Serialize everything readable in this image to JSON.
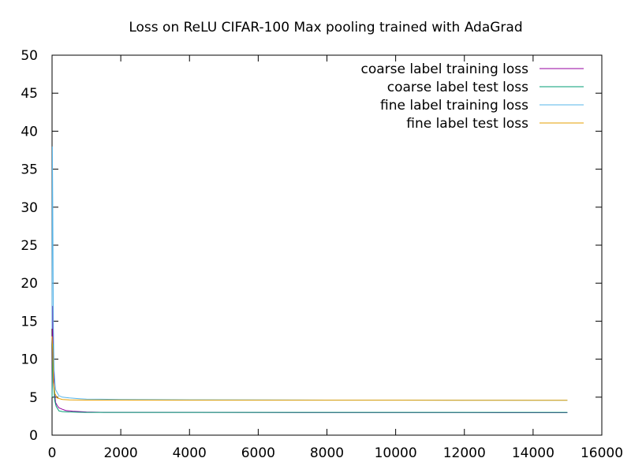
{
  "chart_data": {
    "type": "line",
    "title": "Loss on ReLU CIFAR-100 Max pooling trained with AdaGrad",
    "xlabel": "",
    "ylabel": "",
    "xlim": [
      0,
      16000
    ],
    "ylim": [
      0,
      50
    ],
    "xticks": [
      0,
      2000,
      4000,
      6000,
      8000,
      10000,
      12000,
      14000,
      16000
    ],
    "yticks": [
      0,
      5,
      10,
      15,
      20,
      25,
      30,
      35,
      40,
      45,
      50
    ],
    "grid": false,
    "legend_position": "top-right",
    "series": [
      {
        "name": "coarse label training loss",
        "color": "#94009f",
        "x": [
          0,
          20,
          40,
          60,
          100,
          150,
          200,
          300,
          400,
          600,
          800,
          1000,
          1500,
          2000,
          3000,
          4000,
          6000,
          8000,
          10000,
          12000,
          14000,
          15000
        ],
        "y": [
          5.0,
          17.0,
          10.5,
          6.5,
          4.3,
          3.9,
          3.6,
          3.4,
          3.25,
          3.15,
          3.1,
          3.05,
          3.0,
          3.0,
          3.0,
          3.0,
          2.98,
          2.97,
          2.97,
          2.97,
          2.96,
          2.96
        ]
      },
      {
        "name": "coarse label test loss",
        "color": "#009e73",
        "x": [
          0,
          20,
          40,
          80,
          120,
          200,
          300,
          500,
          1000,
          2000,
          4000,
          6000,
          8000,
          10000,
          12000,
          14000,
          15000
        ],
        "y": [
          5.0,
          12.0,
          7.0,
          4.5,
          3.8,
          3.2,
          3.1,
          3.05,
          3.0,
          3.0,
          3.0,
          3.0,
          3.0,
          3.0,
          3.0,
          3.0,
          3.0
        ]
      },
      {
        "name": "fine label training loss",
        "color": "#56b4e9",
        "x": [
          0,
          10,
          20,
          40,
          60,
          100,
          200,
          300,
          500,
          800,
          1000,
          2000,
          3000,
          4000,
          6000,
          8000,
          10000,
          12000,
          14000,
          15000
        ],
        "y": [
          14.0,
          38.0,
          30.0,
          14.0,
          8.5,
          6.0,
          5.2,
          5.0,
          4.9,
          4.8,
          4.75,
          4.7,
          4.68,
          4.66,
          4.64,
          4.62,
          4.62,
          4.61,
          4.6,
          4.6
        ]
      },
      {
        "name": "fine label test loss",
        "color": "#e69f00",
        "x": [
          0,
          20,
          40,
          80,
          150,
          300,
          500,
          1000,
          2000,
          4000,
          6000,
          8000,
          10000,
          12000,
          14000,
          15000
        ],
        "y": [
          13.0,
          11.0,
          7.0,
          5.5,
          4.9,
          4.7,
          4.65,
          4.62,
          4.62,
          4.61,
          4.61,
          4.61,
          4.61,
          4.6,
          4.6,
          4.6
        ]
      }
    ]
  }
}
